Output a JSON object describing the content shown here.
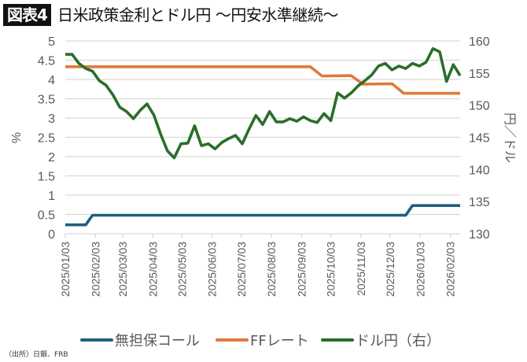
{
  "header": {
    "badge": "図表4",
    "title": "日米政策金利とドル円 〜円安水準継続〜"
  },
  "source": "（出所）日銀、FRB",
  "colors": {
    "call": "#1f5f7f",
    "ff": "#e07b39",
    "usdjpy": "#2a6e2a",
    "grid": "#d9d9d9",
    "axis_text": "#595959"
  },
  "chart_data": {
    "type": "line",
    "ylabel_left": "%",
    "ylabel_right": "円／ドル",
    "ylim_left": [
      0,
      5
    ],
    "ylim_right": [
      130,
      160
    ],
    "yticks_left": [
      "0",
      "0.5",
      "1",
      "1.5",
      "2",
      "2.5",
      "3",
      "3.5",
      "4",
      "4.5",
      "5"
    ],
    "yticks_right": [
      "130",
      "135",
      "140",
      "145",
      "150",
      "155",
      "160"
    ],
    "xlim": [
      "2025/01/03",
      "2026/02/13"
    ],
    "xticks": [
      "2025/01/03",
      "2025/02/03",
      "2025/03/03",
      "2025/04/03",
      "2025/05/03",
      "2025/06/03",
      "2025/07/03",
      "2025/08/03",
      "2025/09/03",
      "2025/10/03",
      "2025/11/03",
      "2025/12/03",
      "2026/01/03",
      "2026/02/03"
    ],
    "grid": true,
    "legend_position": "bottom",
    "series": [
      {
        "name": "無担保コール",
        "axis": "left",
        "color": "#1f5f7f",
        "points": [
          [
            "2025/01/03",
            0.23
          ],
          [
            "2025/01/24",
            0.23
          ],
          [
            "2025/01/31",
            0.48
          ],
          [
            "2025/12/19",
            0.48
          ],
          [
            "2025/12/26",
            0.73
          ],
          [
            "2026/02/13",
            0.73
          ]
        ]
      },
      {
        "name": "FFレート",
        "axis": "left",
        "color": "#e07b39",
        "points": [
          [
            "2025/01/03",
            4.33
          ],
          [
            "2025/09/12",
            4.33
          ],
          [
            "2025/09/24",
            4.09
          ],
          [
            "2025/10/24",
            4.1
          ],
          [
            "2025/11/05",
            3.88
          ],
          [
            "2025/12/05",
            3.89
          ],
          [
            "2025/12/17",
            3.64
          ],
          [
            "2026/02/13",
            3.64
          ]
        ]
      },
      {
        "name": "ドル円（右）",
        "axis": "right",
        "color": "#2a6e2a",
        "points": [
          [
            "2025/01/03",
            157.9
          ],
          [
            "2025/01/10",
            157.9
          ],
          [
            "2025/01/17",
            156.5
          ],
          [
            "2025/01/24",
            155.7
          ],
          [
            "2025/01/31",
            155.3
          ],
          [
            "2025/02/07",
            153.8
          ],
          [
            "2025/02/14",
            153.1
          ],
          [
            "2025/02/21",
            151.6
          ],
          [
            "2025/02/28",
            149.7
          ],
          [
            "2025/03/07",
            149.0
          ],
          [
            "2025/03/14",
            147.9
          ],
          [
            "2025/03/21",
            149.2
          ],
          [
            "2025/03/28",
            150.2
          ],
          [
            "2025/04/04",
            148.5
          ],
          [
            "2025/04/11",
            145.5
          ],
          [
            "2025/04/18",
            142.9
          ],
          [
            "2025/04/25",
            141.8
          ],
          [
            "2025/05/02",
            144.0
          ],
          [
            "2025/05/09",
            144.1
          ],
          [
            "2025/05/16",
            146.8
          ],
          [
            "2025/05/23",
            143.7
          ],
          [
            "2025/05/30",
            144.0
          ],
          [
            "2025/06/06",
            143.2
          ],
          [
            "2025/06/13",
            144.2
          ],
          [
            "2025/06/20",
            144.8
          ],
          [
            "2025/06/27",
            145.3
          ],
          [
            "2025/07/04",
            144.0
          ],
          [
            "2025/07/11",
            146.3
          ],
          [
            "2025/07/18",
            148.4
          ],
          [
            "2025/07/25",
            147.0
          ],
          [
            "2025/08/01",
            149.0
          ],
          [
            "2025/08/08",
            147.4
          ],
          [
            "2025/08/15",
            147.4
          ],
          [
            "2025/08/22",
            147.9
          ],
          [
            "2025/08/29",
            147.5
          ],
          [
            "2025/09/05",
            148.2
          ],
          [
            "2025/09/12",
            147.6
          ],
          [
            "2025/09/19",
            147.3
          ],
          [
            "2025/09/26",
            148.7
          ],
          [
            "2025/10/03",
            147.6
          ],
          [
            "2025/10/10",
            151.9
          ],
          [
            "2025/10/17",
            151.1
          ],
          [
            "2025/10/24",
            151.9
          ],
          [
            "2025/10/31",
            153.0
          ],
          [
            "2025/11/07",
            153.8
          ],
          [
            "2025/11/14",
            154.7
          ],
          [
            "2025/11/21",
            156.1
          ],
          [
            "2025/11/28",
            156.5
          ],
          [
            "2025/12/05",
            155.5
          ],
          [
            "2025/12/12",
            156.1
          ],
          [
            "2025/12/19",
            155.7
          ],
          [
            "2025/12/26",
            156.5
          ],
          [
            "2026/01/02",
            156.1
          ],
          [
            "2026/01/09",
            156.7
          ],
          [
            "2026/01/16",
            158.8
          ],
          [
            "2026/01/23",
            158.3
          ],
          [
            "2026/01/30",
            153.7
          ],
          [
            "2026/02/06",
            156.3
          ],
          [
            "2026/02/13",
            154.6
          ]
        ]
      }
    ]
  }
}
